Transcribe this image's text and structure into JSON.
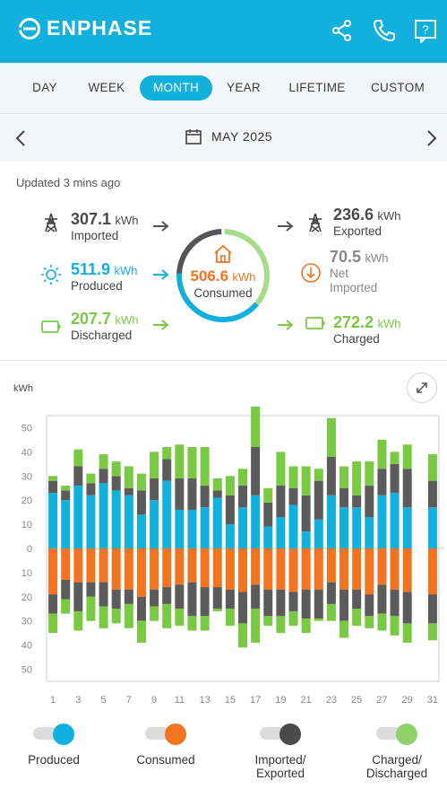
{
  "header": {
    "brand": "ENPHASE",
    "icons": [
      "share-icon",
      "phone-icon",
      "help-icon"
    ],
    "help_glyph": "?"
  },
  "tabs": [
    {
      "label": "DAY",
      "active": false
    },
    {
      "label": "WEEK",
      "active": false
    },
    {
      "label": "MONTH",
      "active": true
    },
    {
      "label": "YEAR",
      "active": false
    },
    {
      "label": "LIFETIME",
      "active": false
    },
    {
      "label": "CUSTOM",
      "active": false
    }
  ],
  "date": {
    "label": "MAY 2025"
  },
  "summary": {
    "updated": "Updated 3 mins ago",
    "imported": {
      "value": "307.1",
      "unit": "kWh",
      "label": "Imported"
    },
    "produced": {
      "value": "511.9",
      "unit": "kWh",
      "label": "Produced"
    },
    "discharged": {
      "value": "207.7",
      "unit": "kWh",
      "label": "Discharged"
    },
    "consumed": {
      "value": "506.6",
      "unit": "kWh",
      "label": "Consumed"
    },
    "exported": {
      "value": "236.6",
      "unit": "kWh",
      "label": "Exported"
    },
    "net_imported": {
      "value": "70.5",
      "unit": "kWh",
      "label_line1": "Net",
      "label_line2": "Imported"
    },
    "charged": {
      "value": "272.2",
      "unit": "kWh",
      "label": "Charged"
    }
  },
  "colors": {
    "brand": "#12b0dc",
    "produced": "#12b0dc",
    "consumed": "#f37321",
    "grid": "#5b5b5b",
    "battery": "#7ac943",
    "ring_grey": "#555555"
  },
  "chart_data": {
    "type": "bar",
    "ylabel": "kWh",
    "y_ticks": [
      "50",
      "40",
      "30",
      "20",
      "10",
      "0",
      "10",
      "20",
      "30",
      "40",
      "50"
    ],
    "x_tick_labels": [
      "1",
      "3",
      "5",
      "7",
      "9",
      "11",
      "13",
      "15",
      "17",
      "19",
      "21",
      "23",
      "25",
      "27",
      "29",
      "31"
    ],
    "ylim": [
      -50,
      50
    ],
    "categories": [
      1,
      2,
      3,
      4,
      5,
      6,
      7,
      8,
      9,
      10,
      11,
      12,
      13,
      14,
      15,
      16,
      17,
      18,
      19,
      20,
      21,
      22,
      23,
      24,
      25,
      26,
      27,
      28,
      29,
      31
    ],
    "series": [
      {
        "name": "Produced",
        "values": [
          23,
          20,
          26,
          22,
          27,
          24,
          22,
          14,
          20,
          28,
          16,
          16,
          17,
          21,
          10,
          17,
          22,
          9,
          13,
          18,
          7,
          12,
          22,
          17,
          17,
          13,
          22,
          23,
          17,
          17
        ]
      },
      {
        "name": "Imported/Exported",
        "values": [
          5,
          4,
          8,
          5,
          6,
          6,
          3,
          10,
          9,
          9,
          13,
          13,
          9,
          3,
          12,
          9,
          20,
          10,
          13,
          7,
          15,
          16,
          16,
          8,
          5,
          13,
          11,
          12,
          16,
          11
        ]
      },
      {
        "name": "Charged/Discharged",
        "values": [
          2,
          2,
          7,
          4,
          6,
          6,
          9,
          7,
          11,
          5,
          14,
          13,
          16,
          5,
          8,
          7,
          20,
          6,
          14,
          9,
          12,
          5,
          16,
          9,
          14,
          10,
          12,
          5,
          10,
          11
        ]
      },
      {
        "name": "Consumed",
        "values": [
          -19,
          -13,
          -14,
          -14,
          -14,
          -17,
          -17,
          -20,
          -17,
          -16,
          -15,
          -14,
          -16,
          -16,
          -17,
          -18,
          -15,
          -17,
          -17,
          -18,
          -17,
          -17,
          -14,
          -17,
          -17,
          -19,
          -15,
          -17,
          -18,
          -19
        ]
      },
      {
        "name": "Imported/Exported (lower)",
        "values": [
          -8,
          -8,
          -12,
          -6,
          -10,
          -8,
          -6,
          -10,
          -7,
          -7,
          -10,
          -14,
          -12,
          -9,
          -8,
          -13,
          -10,
          -11,
          -11,
          -8,
          -12,
          -12,
          -9,
          -13,
          -8,
          -9,
          -12,
          -11,
          -13,
          -12
        ]
      },
      {
        "name": "Charged/Discharged (lower)",
        "values": [
          -8,
          -6,
          -8,
          -10,
          -9,
          -6,
          -10,
          -9,
          -6,
          -10,
          -7,
          -6,
          -6,
          -1,
          -7,
          -10,
          -14,
          -4,
          -7,
          -6,
          -6,
          -1,
          -7,
          -7,
          -7,
          -5,
          -7,
          -8,
          -8,
          -7
        ]
      }
    ]
  },
  "legend": [
    {
      "label": "Produced",
      "color": "#12b0dc"
    },
    {
      "label": "Consumed",
      "color": "#f37321"
    },
    {
      "label": "Imported/\nExported",
      "color": "#4a4a4a"
    },
    {
      "label": "Charged/\nDischarged",
      "color": "#8fd16a"
    }
  ]
}
